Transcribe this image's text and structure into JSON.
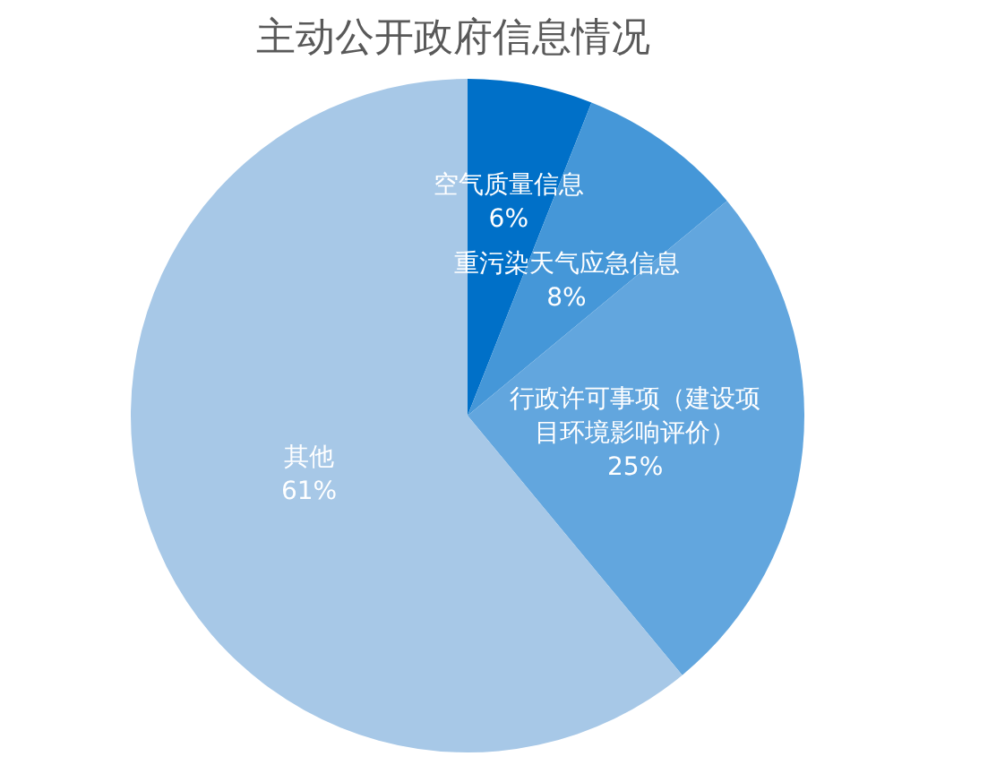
{
  "chart_data": {
    "type": "pie",
    "title": "主动公开政府信息情况",
    "categories": [
      "空气质量信息",
      "重污染天气应急信息",
      "行政许可事项（建设项目环境影响评价）",
      "其他"
    ],
    "values": [
      6,
      8,
      25,
      61
    ],
    "value_labels": [
      "6%",
      "8%",
      "25%",
      "61%"
    ],
    "colors": [
      "#0070c8",
      "#4597d8",
      "#62a6de",
      "#a7c8e7"
    ]
  }
}
